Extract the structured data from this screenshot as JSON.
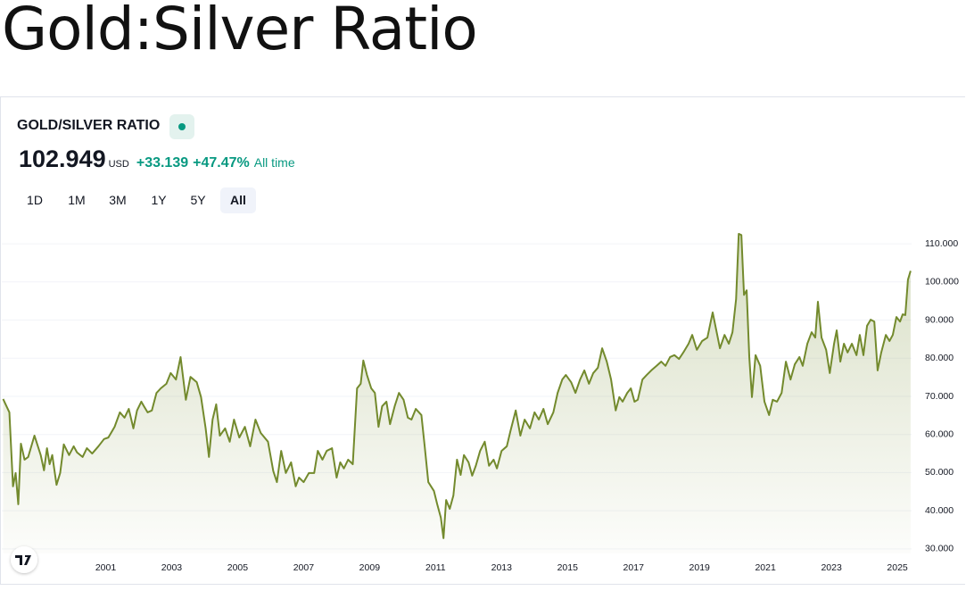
{
  "page_title": "Gold:Silver Ratio",
  "header": {
    "symbol": "GOLD/SILVER RATIO",
    "price": "102.949",
    "currency": "USD",
    "change": "+33.139",
    "change_percent": "+47.47%",
    "period": "All time",
    "ranges": [
      "1D",
      "1M",
      "3M",
      "1Y",
      "5Y",
      "All"
    ],
    "active_range": 5
  },
  "chart_data": {
    "type": "area",
    "color": "#738a2d",
    "x": [
      1997.89,
      1998.08,
      1998.19,
      1998.27,
      1998.35,
      1998.43,
      1998.54,
      1998.65,
      1998.84,
      1999.03,
      1999.13,
      1999.22,
      1999.3,
      1999.38,
      1999.51,
      1999.62,
      1999.73,
      1999.89,
      2000.03,
      2000.13,
      2000.3,
      2000.43,
      2000.59,
      2000.78,
      2000.95,
      2001.08,
      2001.27,
      2001.43,
      2001.57,
      2001.7,
      2001.84,
      2001.95,
      2002.08,
      2002.16,
      2002.27,
      2002.4,
      2002.54,
      2002.67,
      2002.84,
      2002.97,
      2003.13,
      2003.27,
      2003.43,
      2003.57,
      2003.76,
      2003.89,
      2004.03,
      2004.13,
      2004.24,
      2004.35,
      2004.46,
      2004.62,
      2004.76,
      2004.89,
      2005.05,
      2005.22,
      2005.38,
      2005.54,
      2005.7,
      2005.92,
      2006.08,
      2006.19,
      2006.32,
      2006.46,
      2006.62,
      2006.76,
      2006.86,
      2007.0,
      2007.16,
      2007.32,
      2007.43,
      2007.57,
      2007.7,
      2007.86,
      2008.0,
      2008.11,
      2008.22,
      2008.35,
      2008.49,
      2008.62,
      2008.73,
      2008.81,
      2008.92,
      2009.05,
      2009.16,
      2009.27,
      2009.38,
      2009.51,
      2009.62,
      2009.76,
      2009.89,
      2010.03,
      2010.16,
      2010.27,
      2010.4,
      2010.57,
      2010.67,
      2010.78,
      2010.95,
      2011.05,
      2011.16,
      2011.24,
      2011.32,
      2011.43,
      2011.54,
      2011.65,
      2011.76,
      2011.86,
      2012.0,
      2012.11,
      2012.22,
      2012.35,
      2012.49,
      2012.62,
      2012.76,
      2012.86,
      2013.0,
      2013.16,
      2013.27,
      2013.43,
      2013.57,
      2013.7,
      2013.86,
      2014.0,
      2014.13,
      2014.27,
      2014.4,
      2014.57,
      2014.7,
      2014.84,
      2014.95,
      2015.11,
      2015.24,
      2015.38,
      2015.51,
      2015.65,
      2015.78,
      2015.92,
      2016.05,
      2016.19,
      2016.32,
      2016.46,
      2016.57,
      2016.67,
      2016.81,
      2016.92,
      2017.03,
      2017.13,
      2017.27,
      2017.4,
      2017.54,
      2017.7,
      2017.84,
      2017.97,
      2018.11,
      2018.24,
      2018.38,
      2018.51,
      2018.67,
      2018.78,
      2018.92,
      2019.08,
      2019.24,
      2019.4,
      2019.51,
      2019.62,
      2019.76,
      2019.89,
      2020.0,
      2020.11,
      2020.19,
      2020.27,
      2020.35,
      2020.43,
      2020.51,
      2020.59,
      2020.7,
      2020.84,
      2020.97,
      2021.11,
      2021.22,
      2021.35,
      2021.49,
      2021.62,
      2021.76,
      2021.89,
      2022.03,
      2022.13,
      2022.27,
      2022.4,
      2022.51,
      2022.59,
      2022.7,
      2022.84,
      2022.95,
      2023.08,
      2023.16,
      2023.27,
      2023.38,
      2023.49,
      2023.62,
      2023.76,
      2023.86,
      2023.97,
      2024.08,
      2024.19,
      2024.3,
      2024.4,
      2024.51,
      2024.65,
      2024.76,
      2024.86,
      2024.97,
      2025.08,
      2025.16,
      2025.24,
      2025.32,
      2025.4
    ],
    "values": [
      69.3,
      65.8,
      46.4,
      49.9,
      41.7,
      57.6,
      53.4,
      54.1,
      59.7,
      54.6,
      50.6,
      56.4,
      52.2,
      54.6,
      46.8,
      49.9,
      57.4,
      54.6,
      56.9,
      55.3,
      54.1,
      56.4,
      55.0,
      56.9,
      58.8,
      59.2,
      62.0,
      65.8,
      64.4,
      66.7,
      61.6,
      66.3,
      68.6,
      67.4,
      65.8,
      66.3,
      70.9,
      72.1,
      73.3,
      76.1,
      74.4,
      80.3,
      69.1,
      75.1,
      73.7,
      69.8,
      61.6,
      54.1,
      63.9,
      67.9,
      59.7,
      61.6,
      58.1,
      63.9,
      59.2,
      62.0,
      56.9,
      63.9,
      60.4,
      58.1,
      50.4,
      47.5,
      55.7,
      49.9,
      52.7,
      46.4,
      48.7,
      47.5,
      49.9,
      49.9,
      55.7,
      53.4,
      55.7,
      56.4,
      48.7,
      52.7,
      51.1,
      53.4,
      52.2,
      72.1,
      73.3,
      79.4,
      75.6,
      72.1,
      70.9,
      62.0,
      67.4,
      68.6,
      62.7,
      67.4,
      70.9,
      69.1,
      64.4,
      63.9,
      66.7,
      65.1,
      56.9,
      47.5,
      45.2,
      41.7,
      38.2,
      32.8,
      42.8,
      40.5,
      44.0,
      53.4,
      49.4,
      54.6,
      52.7,
      49.2,
      51.8,
      55.7,
      58.1,
      51.8,
      53.4,
      51.1,
      55.7,
      56.9,
      60.9,
      66.3,
      59.7,
      63.9,
      61.6,
      65.8,
      63.9,
      66.7,
      62.7,
      65.8,
      70.9,
      74.4,
      75.6,
      73.7,
      70.9,
      74.4,
      76.8,
      73.3,
      76.1,
      77.5,
      82.6,
      79.1,
      74.4,
      66.3,
      69.8,
      68.6,
      70.9,
      72.1,
      68.6,
      69.1,
      74.4,
      75.6,
      76.8,
      78.0,
      79.1,
      78.0,
      80.3,
      80.8,
      79.8,
      81.5,
      83.8,
      86.1,
      82.2,
      84.5,
      85.4,
      92.0,
      87.3,
      82.6,
      86.1,
      83.8,
      86.8,
      95.5,
      112.6,
      112.3,
      96.6,
      97.8,
      80.3,
      69.8,
      80.8,
      78.0,
      68.6,
      65.1,
      69.1,
      68.6,
      70.9,
      79.1,
      74.4,
      78.4,
      80.3,
      78.0,
      83.8,
      86.8,
      85.4,
      94.8,
      85.4,
      82.2,
      76.1,
      83.8,
      87.3,
      79.1,
      83.8,
      81.5,
      83.8,
      80.8,
      86.1,
      80.8,
      88.5,
      90.1,
      89.6,
      76.8,
      81.5,
      86.1,
      84.5,
      86.1,
      90.8,
      89.6,
      91.5,
      91.3,
      100.6,
      102.9
    ],
    "xlim": [
      1997.85,
      2025.43
    ],
    "xticks": [
      2001,
      2003,
      2005,
      2007,
      2009,
      2011,
      2013,
      2015,
      2017,
      2019,
      2021,
      2023,
      2025
    ],
    "ylim": [
      28.8,
      115.4
    ],
    "yticks": [
      {
        "value": 30,
        "label": "30.000"
      },
      {
        "value": 40,
        "label": "40.000"
      },
      {
        "value": 50,
        "label": "50.000"
      },
      {
        "value": 60,
        "label": "60.000"
      },
      {
        "value": 70,
        "label": "70.000"
      },
      {
        "value": 80,
        "label": "80.000"
      },
      {
        "value": 90,
        "label": "90.000"
      },
      {
        "value": 100,
        "label": "100.000"
      },
      {
        "value": 110,
        "label": "110.000"
      }
    ],
    "grid": true
  }
}
